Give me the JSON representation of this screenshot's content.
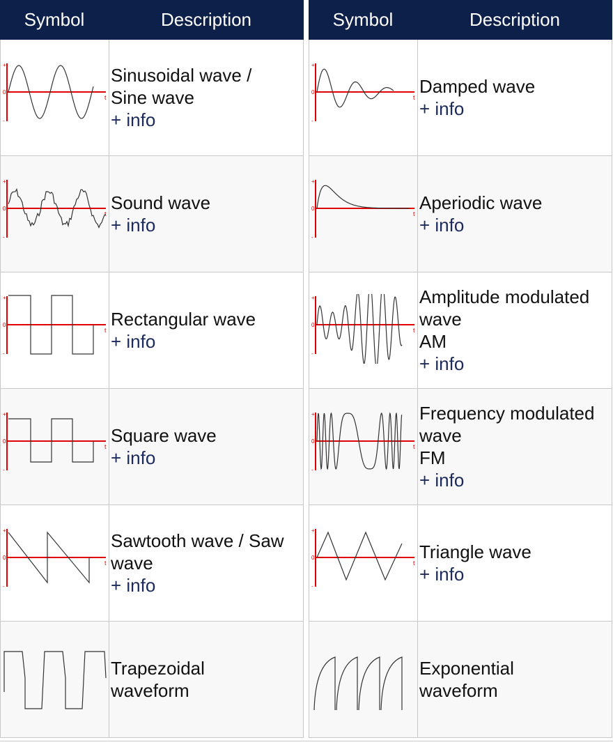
{
  "left_table": {
    "header": {
      "symbol": "Symbol",
      "description": "Description"
    },
    "rows": [
      {
        "lines": [
          "Sinusoidal wave /",
          "Sine wave"
        ],
        "info": "+ info",
        "icon": "sine-wave-icon"
      },
      {
        "lines": [
          "Sound wave"
        ],
        "info": "+ info",
        "icon": "sound-wave-icon"
      },
      {
        "lines": [
          "Rectangular wave"
        ],
        "info": "+ info",
        "icon": "rectangular-wave-icon"
      },
      {
        "lines": [
          "Square wave"
        ],
        "info": "+ info",
        "icon": "square-wave-icon"
      },
      {
        "lines": [
          "Sawtooth wave / Saw",
          "wave"
        ],
        "info": "+ info",
        "icon": "sawtooth-wave-icon"
      },
      {
        "lines": [
          "Trapezoidal",
          "waveform"
        ],
        "info": "",
        "icon": "trapezoidal-wave-icon"
      }
    ]
  },
  "right_table": {
    "header": {
      "symbol": "Symbol",
      "description": "Description"
    },
    "rows": [
      {
        "lines": [
          "Damped wave"
        ],
        "info": "+ info",
        "icon": "damped-wave-icon"
      },
      {
        "lines": [
          "Aperiodic wave"
        ],
        "info": "+ info",
        "icon": "aperiodic-wave-icon"
      },
      {
        "lines": [
          "Amplitude modulated",
          "wave",
          "AM"
        ],
        "info": "+ info",
        "icon": "am-wave-icon"
      },
      {
        "lines": [
          "Frequency modulated",
          "wave",
          "FM"
        ],
        "info": "+ info",
        "icon": "fm-wave-icon"
      },
      {
        "lines": [
          "Triangle wave"
        ],
        "info": "+ info",
        "icon": "triangle-wave-icon"
      },
      {
        "lines": [
          "Exponential",
          "waveform"
        ],
        "info": "",
        "icon": "exponential-wave-icon"
      }
    ]
  },
  "axis_labels": {
    "plus": "+",
    "zero": "0",
    "minus": "-",
    "t": "t"
  },
  "colors": {
    "header_bg": "#0d2049",
    "axis": "#e00000",
    "wave": "#333333"
  }
}
